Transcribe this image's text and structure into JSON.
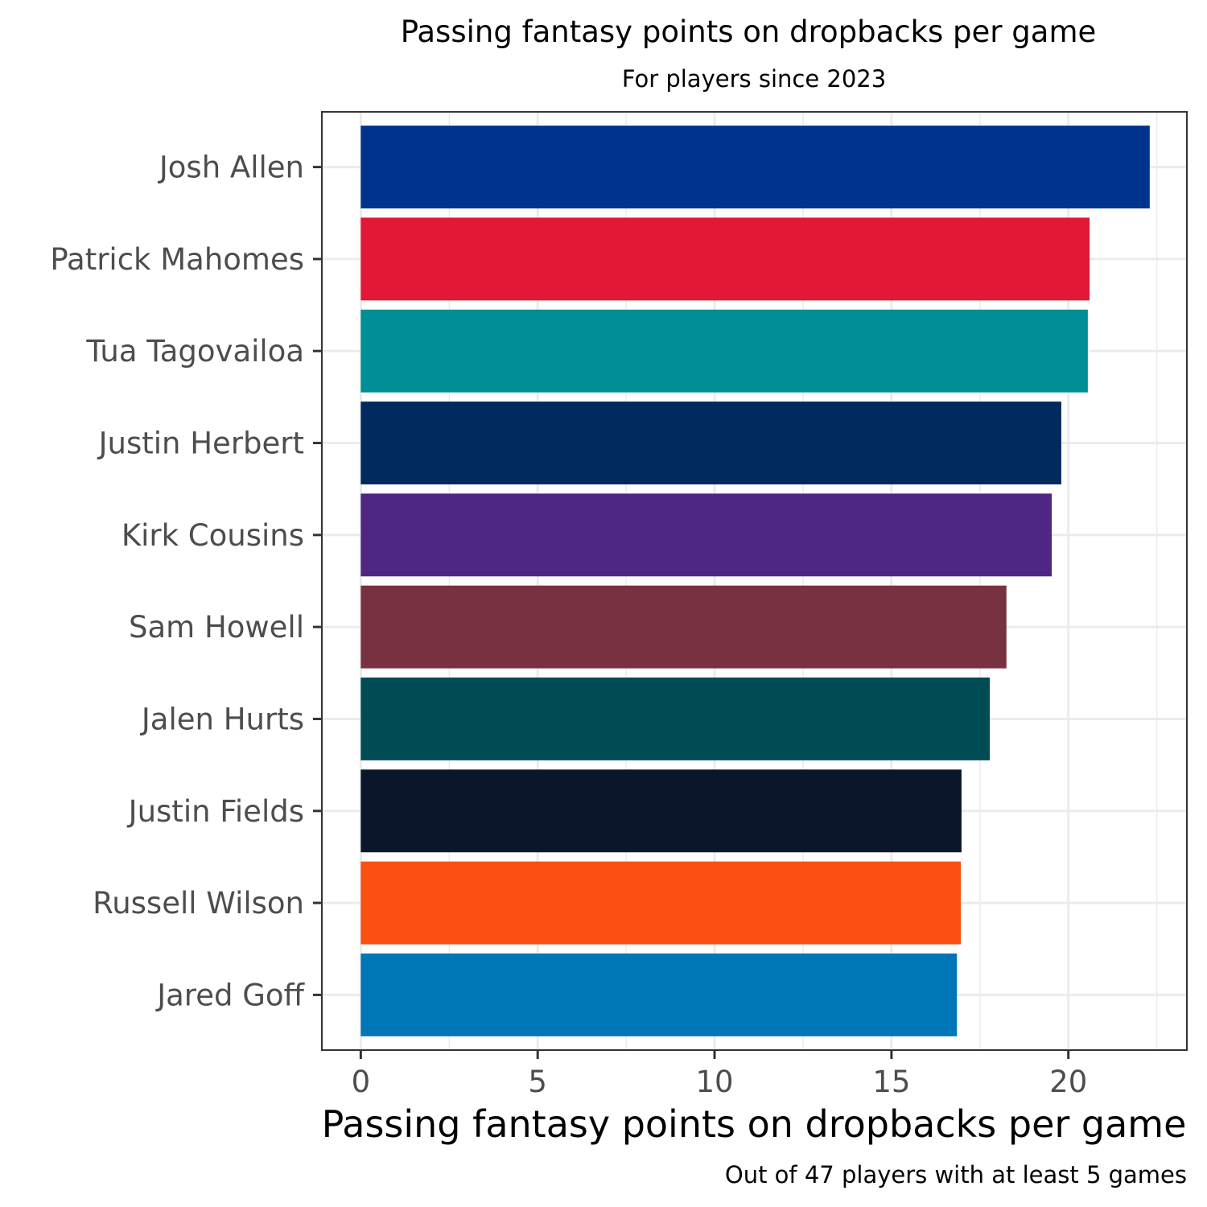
{
  "chart_data": {
    "type": "bar",
    "orientation": "horizontal",
    "title": "Passing fantasy points on dropbacks per game",
    "subtitle": "For players since 2023",
    "xlabel": "Passing fantasy points on dropbacks per game",
    "ylabel": "",
    "caption": "Out of 47 players with at least 5 games",
    "xlim": [
      -1.1,
      23.35
    ],
    "xticks": [
      0,
      5,
      10,
      15,
      20
    ],
    "xtick_labels": [
      "0",
      "5",
      "10",
      "15",
      "20"
    ],
    "grid": true,
    "legend": "none",
    "categories": [
      "Josh Allen",
      "Patrick Mahomes",
      "Tua Tagovailoa",
      "Justin Herbert",
      "Kirk Cousins",
      "Sam Howell",
      "Jalen Hurts",
      "Justin Fields",
      "Russell Wilson",
      "Jared Goff"
    ],
    "values": [
      22.3,
      20.6,
      20.55,
      19.8,
      19.53,
      18.25,
      17.78,
      16.98,
      16.96,
      16.85
    ],
    "colors": [
      "#00338D",
      "#E31837",
      "#008E97",
      "#002A5E",
      "#4F2683",
      "#773141",
      "#004C54",
      "#0B162A",
      "#FB4F14",
      "#0076B6"
    ]
  }
}
